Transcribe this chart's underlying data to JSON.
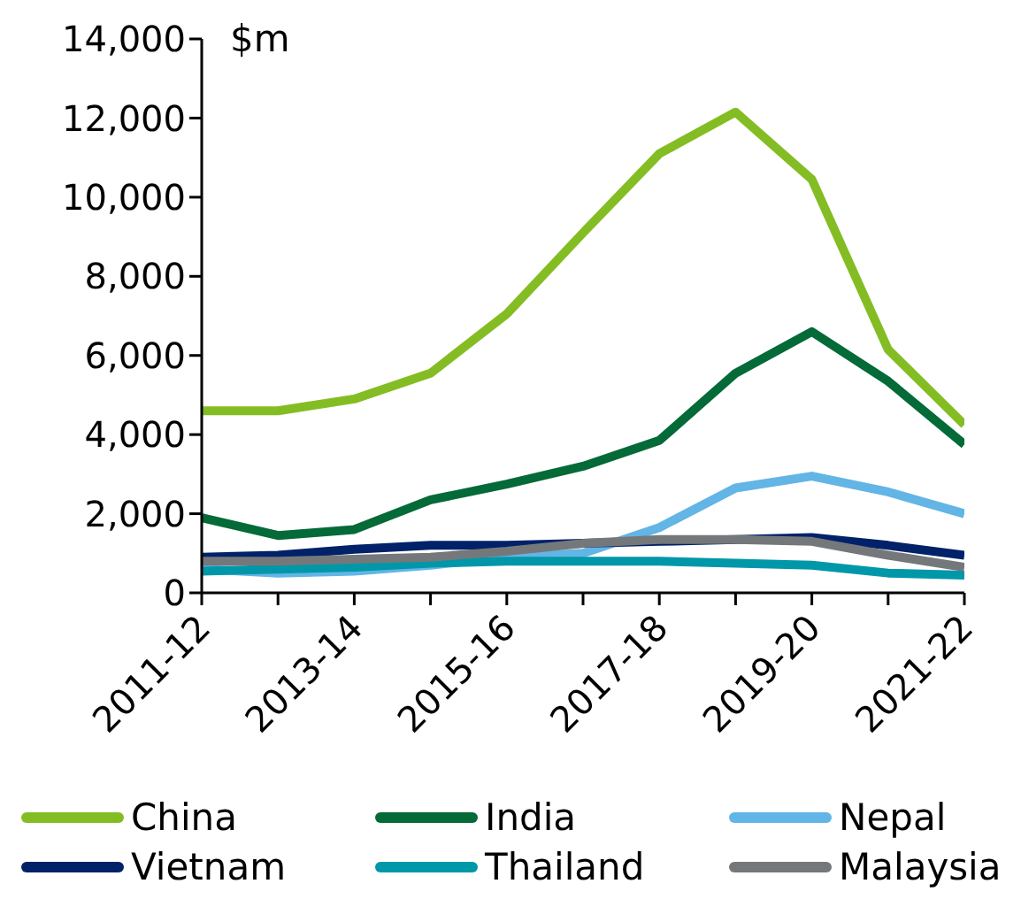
{
  "chart_data": {
    "type": "line",
    "ylabel": "$m",
    "categories": [
      "2011-12",
      null,
      "2013-14",
      null,
      "2015-16",
      null,
      "2017-18",
      null,
      "2019-20",
      null,
      "2021-22"
    ],
    "series": [
      {
        "name": "China",
        "color": "#84bd23",
        "values": [
          4600,
          4600,
          4900,
          5550,
          7050,
          9100,
          11100,
          12150,
          10450,
          6150,
          4250
        ]
      },
      {
        "name": "India",
        "color": "#046a38",
        "values": [
          1900,
          1450,
          1600,
          2350,
          2750,
          3200,
          3850,
          5550,
          6600,
          5350,
          3750
        ]
      },
      {
        "name": "Nepal",
        "color": "#62b5e5",
        "values": [
          600,
          500,
          550,
          700,
          900,
          1000,
          1650,
          2650,
          2950,
          2550,
          2000
        ]
      },
      {
        "name": "Vietnam",
        "color": "#012169",
        "values": [
          900,
          950,
          1100,
          1200,
          1200,
          1250,
          1300,
          1350,
          1400,
          1200,
          950
        ]
      },
      {
        "name": "Thailand",
        "color": "#0097a9",
        "values": [
          550,
          600,
          650,
          750,
          800,
          800,
          800,
          750,
          700,
          500,
          450
        ]
      },
      {
        "name": "Malaysia",
        "color": "#75787b",
        "values": [
          800,
          800,
          850,
          900,
          1050,
          1250,
          1350,
          1350,
          1300,
          950,
          650
        ]
      }
    ],
    "ylim": [
      0,
      14000
    ],
    "yticks": [
      {
        "value": 0,
        "label": "0"
      },
      {
        "value": 2000,
        "label": "2,000"
      },
      {
        "value": 4000,
        "label": "4,000"
      },
      {
        "value": 6000,
        "label": "6,000"
      },
      {
        "value": 8000,
        "label": "8,000"
      },
      {
        "value": 10000,
        "label": "10,000"
      },
      {
        "value": 12000,
        "label": "12,000"
      },
      {
        "value": 14000,
        "label": "14,000"
      }
    ],
    "grid": false,
    "legend": "bottom",
    "marker": "none",
    "line_style": "solid"
  }
}
